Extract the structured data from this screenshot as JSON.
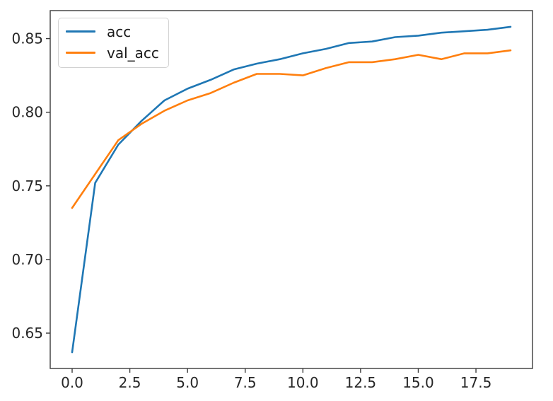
{
  "chart_data": {
    "type": "line",
    "title": "",
    "xlabel": "",
    "ylabel": "",
    "x": [
      0,
      1,
      2,
      3,
      4,
      5,
      6,
      7,
      8,
      9,
      10,
      11,
      12,
      13,
      14,
      15,
      16,
      17,
      18,
      19
    ],
    "series": [
      {
        "name": "acc",
        "color": "#1f77b4",
        "values": [
          0.637,
          0.752,
          0.778,
          0.794,
          0.808,
          0.816,
          0.822,
          0.829,
          0.833,
          0.836,
          0.84,
          0.843,
          0.847,
          0.848,
          0.851,
          0.852,
          0.854,
          0.855,
          0.856,
          0.858
        ]
      },
      {
        "name": "val_acc",
        "color": "#ff7f0e",
        "values": [
          0.735,
          0.758,
          0.781,
          0.792,
          0.801,
          0.808,
          0.813,
          0.82,
          0.826,
          0.826,
          0.825,
          0.83,
          0.834,
          0.834,
          0.836,
          0.839,
          0.836,
          0.84,
          0.84,
          0.842
        ]
      }
    ],
    "xlim": [
      -0.95,
      19.95
    ],
    "ylim": [
      0.626,
      0.869
    ],
    "xtick_values": [
      0,
      2.5,
      5,
      7.5,
      10,
      12.5,
      15,
      17.5
    ],
    "xtick_labels": [
      "0.0",
      "2.5",
      "5.0",
      "7.5",
      "10.0",
      "12.5",
      "15.0",
      "17.5"
    ],
    "ytick_values": [
      0.65,
      0.7,
      0.75,
      0.8,
      0.85
    ],
    "ytick_labels": [
      "0.65",
      "0.70",
      "0.75",
      "0.80",
      "0.85"
    ],
    "grid": false,
    "legend_position": "upper left"
  },
  "styles": {
    "background": "#ffffff",
    "axis_color": "#3a3a3a",
    "tick_label_color": "#262626",
    "legend_border_color": "#d2d2d2"
  }
}
